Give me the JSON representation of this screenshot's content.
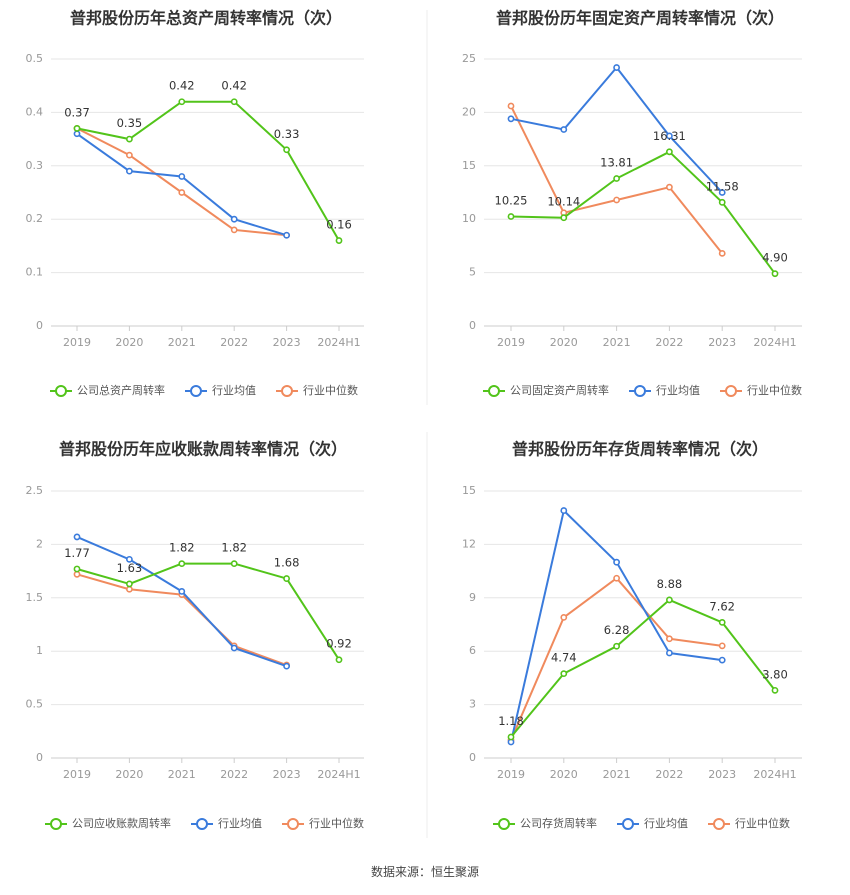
{
  "source_text": "数据来源：恒生聚源",
  "chart_data": [
    {
      "type": "line",
      "title": "普邦股份历年总资产周转率情况（次）",
      "categories": [
        "2019",
        "2020",
        "2021",
        "2022",
        "2023",
        "2024H1"
      ],
      "ylim": [
        0,
        0.5
      ],
      "yticks": [
        0,
        0.1,
        0.2,
        0.3,
        0.4,
        0.5
      ],
      "ytick_labels": [
        "0",
        "0.1",
        "0.2",
        "0.3",
        "0.4",
        "0.5"
      ],
      "label_decimals": 2,
      "series": [
        {
          "name": "公司总资产周转率",
          "color": "#52c41a",
          "values": [
            0.37,
            0.35,
            0.42,
            0.42,
            0.33,
            0.16
          ],
          "labels": true
        },
        {
          "name": "行业均值",
          "color": "#3a7bdc",
          "values": [
            0.36,
            0.29,
            0.28,
            0.2,
            0.17,
            null
          ],
          "labels": false
        },
        {
          "name": "行业中位数",
          "color": "#f08a5d",
          "values": [
            0.37,
            0.32,
            0.25,
            0.18,
            0.17,
            null
          ],
          "labels": false
        }
      ]
    },
    {
      "type": "line",
      "title": "普邦股份历年固定资产周转率情况（次）",
      "categories": [
        "2019",
        "2020",
        "2021",
        "2022",
        "2023",
        "2024H1"
      ],
      "ylim": [
        0,
        25
      ],
      "yticks": [
        0,
        5,
        10,
        15,
        20,
        25
      ],
      "ytick_labels": [
        "0",
        "5",
        "10",
        "15",
        "20",
        "25"
      ],
      "label_decimals": 2,
      "series": [
        {
          "name": "公司固定资产周转率",
          "color": "#52c41a",
          "values": [
            10.25,
            10.14,
            13.81,
            16.31,
            11.58,
            4.9
          ],
          "labels": true
        },
        {
          "name": "行业均值",
          "color": "#3a7bdc",
          "values": [
            19.4,
            18.4,
            24.2,
            17.8,
            12.5,
            null
          ],
          "labels": false
        },
        {
          "name": "行业中位数",
          "color": "#f08a5d",
          "values": [
            20.6,
            10.6,
            11.8,
            13.0,
            6.8,
            null
          ],
          "labels": false
        }
      ]
    },
    {
      "type": "line",
      "title": "普邦股份历年应收账款周转率情况（次）",
      "categories": [
        "2019",
        "2020",
        "2021",
        "2022",
        "2023",
        "2024H1"
      ],
      "ylim": [
        0,
        2.5
      ],
      "yticks": [
        0,
        0.5,
        1,
        1.5,
        2,
        2.5
      ],
      "ytick_labels": [
        "0",
        "0.5",
        "1",
        "1.5",
        "2",
        "2.5"
      ],
      "label_decimals": 2,
      "series": [
        {
          "name": "公司应收账款周转率",
          "color": "#52c41a",
          "values": [
            1.77,
            1.63,
            1.82,
            1.82,
            1.68,
            0.92
          ],
          "labels": true
        },
        {
          "name": "行业均值",
          "color": "#3a7bdc",
          "values": [
            2.07,
            1.86,
            1.56,
            1.03,
            0.86,
            null
          ],
          "labels": false
        },
        {
          "name": "行业中位数",
          "color": "#f08a5d",
          "values": [
            1.72,
            1.58,
            1.53,
            1.05,
            0.87,
            null
          ],
          "labels": false
        }
      ]
    },
    {
      "type": "line",
      "title": "普邦股份历年存货周转率情况（次）",
      "categories": [
        "2019",
        "2020",
        "2021",
        "2022",
        "2023",
        "2024H1"
      ],
      "ylim": [
        0,
        15
      ],
      "yticks": [
        0,
        3,
        6,
        9,
        12,
        15
      ],
      "ytick_labels": [
        "0",
        "3",
        "6",
        "9",
        "12",
        "15"
      ],
      "label_decimals": 2,
      "series": [
        {
          "name": "公司存货周转率",
          "color": "#52c41a",
          "values": [
            1.18,
            4.74,
            6.28,
            8.88,
            7.62,
            3.8
          ],
          "labels": true
        },
        {
          "name": "行业均值",
          "color": "#3a7bdc",
          "values": [
            0.9,
            13.9,
            11.0,
            5.9,
            5.5,
            null
          ],
          "labels": false
        },
        {
          "name": "行业中位数",
          "color": "#f08a5d",
          "values": [
            1.0,
            7.9,
            10.1,
            6.7,
            6.3,
            null
          ],
          "labels": false
        }
      ]
    }
  ]
}
